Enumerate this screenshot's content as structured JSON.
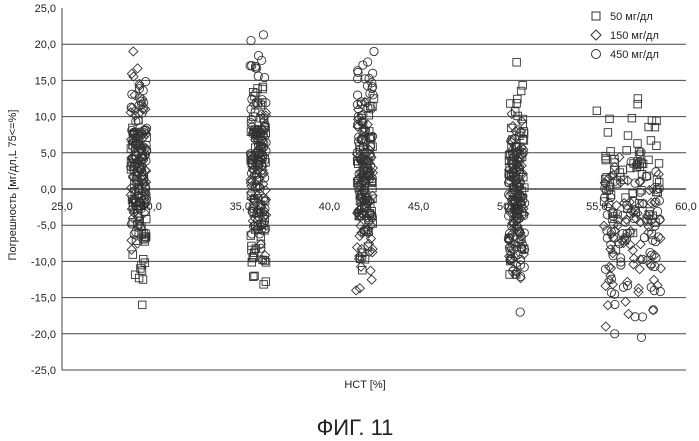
{
  "figure_caption": "ФИГ. 11",
  "chart_data": {
    "type": "scatter",
    "xlabel": "HCT [%]",
    "ylabel": "Погрешность [мг/дл,L 75<=%]",
    "xlim": [
      25.0,
      60.0
    ],
    "ylim": [
      -25.0,
      25.0
    ],
    "x_ticks": [
      "25,0",
      "30,0",
      "35,0",
      "40,0",
      "45,0",
      "50,0",
      "55,0",
      "60,0"
    ],
    "x_tick_values": [
      25,
      30,
      35,
      40,
      45,
      50,
      55,
      60
    ],
    "y_ticks": [
      "25,0",
      "20,0",
      "15,0",
      "10,0",
      "5,0",
      "0,0",
      "-5,0",
      "-10,0",
      "-15,0",
      "-20,0",
      "-25,0"
    ],
    "y_tick_values": [
      25,
      20,
      15,
      10,
      5,
      0,
      -5,
      -10,
      -15,
      -20,
      -25
    ],
    "grid": "horizontal",
    "legend_position": "top-right",
    "hct_groups": [
      29.3,
      36.0,
      42.0,
      50.5,
      57.0
    ],
    "series": [
      {
        "name": "50 мг/дл",
        "marker": "square",
        "ranges": [
          [
            -16.0,
            12.5
          ],
          [
            -14.5,
            17.5
          ],
          [
            -14.0,
            13.0
          ],
          [
            -12.0,
            18.0
          ],
          [
            -10.0,
            12.5
          ]
        ],
        "outliers": [
          {
            "x": 29.5,
            "y": -16.0
          },
          {
            "x": 35.8,
            "y": -12.0
          },
          {
            "x": 42.5,
            "y": 12.5
          },
          {
            "x": 50.5,
            "y": 17.5
          },
          {
            "x": 57.3,
            "y": 12.5
          },
          {
            "x": 55.0,
            "y": 10.8
          }
        ]
      },
      {
        "name": "150 мг/дл",
        "marker": "diamond",
        "ranges": [
          [
            -10.5,
            19.0
          ],
          [
            -12.0,
            14.0
          ],
          [
            -14.0,
            13.5
          ],
          [
            -14.5,
            12.0
          ],
          [
            -19.0,
            7.0
          ]
        ],
        "outliers": [
          {
            "x": 29.0,
            "y": 19.0
          },
          {
            "x": 41.5,
            "y": -14.0
          },
          {
            "x": 55.5,
            "y": -19.0
          }
        ]
      },
      {
        "name": "450 мг/дл",
        "marker": "circle",
        "ranges": [
          [
            -7.0,
            16.5
          ],
          [
            -14.5,
            21.3
          ],
          [
            -9.0,
            19.0
          ],
          [
            -17.5,
            10.0
          ],
          [
            -20.5,
            8.0
          ]
        ],
        "outliers": [
          {
            "x": 36.3,
            "y": 21.3
          },
          {
            "x": 35.6,
            "y": 20.5
          },
          {
            "x": 42.5,
            "y": 19.0
          },
          {
            "x": 50.7,
            "y": -17.0
          },
          {
            "x": 57.5,
            "y": -20.5
          },
          {
            "x": 56.0,
            "y": -20.0
          }
        ]
      }
    ]
  }
}
